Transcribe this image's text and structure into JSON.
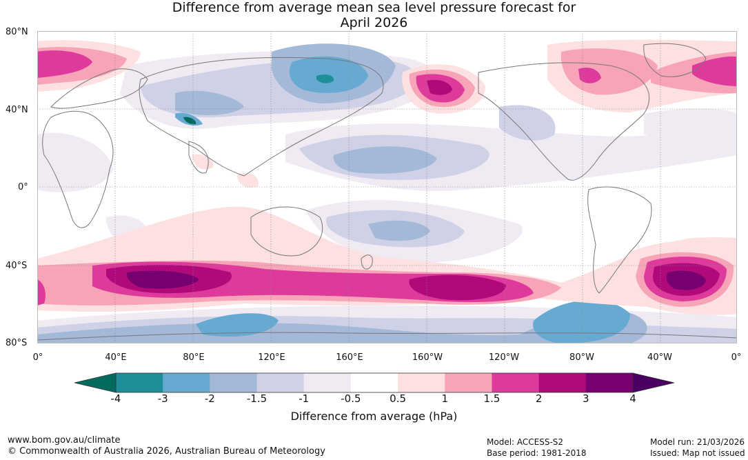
{
  "title": {
    "line1": "Difference from average mean sea level pressure forecast for",
    "line2": "April 2026"
  },
  "map": {
    "lat_labels": [
      "80°N",
      "40°N",
      "0°",
      "40°S",
      "80°S"
    ],
    "lon_labels": [
      "0°",
      "40°E",
      "80°E",
      "120°E",
      "160°E",
      "160°W",
      "120°W",
      "80°W",
      "40°W",
      "0°"
    ]
  },
  "colorbar": {
    "label": "Difference from average (hPa)",
    "ticks": [
      "-4",
      "-3",
      "-2",
      "-1.5",
      "-1",
      "-0.5",
      "0.5",
      "1",
      "1.5",
      "2",
      "3",
      "4"
    ],
    "colors": [
      "#036b5e",
      "#1d8f99",
      "#66a9d1",
      "#a4b8d8",
      "#cfd2e6",
      "#f0eaf3",
      "#ffffff",
      "#fde0e0",
      "#f7a3b8",
      "#de3a9c",
      "#b0097a",
      "#770071",
      "#4a0062"
    ]
  },
  "footer": {
    "url": "www.bom.gov.au/climate",
    "copyright": "© Commonwealth of Australia 2026, Australian Bureau of Meteorology",
    "model": "Model: ACCESS-S2",
    "base_period": "Base period: 1981-2018",
    "model_run": "Model run: 21/03/2026",
    "issued": "Issued: Map not issued"
  }
}
